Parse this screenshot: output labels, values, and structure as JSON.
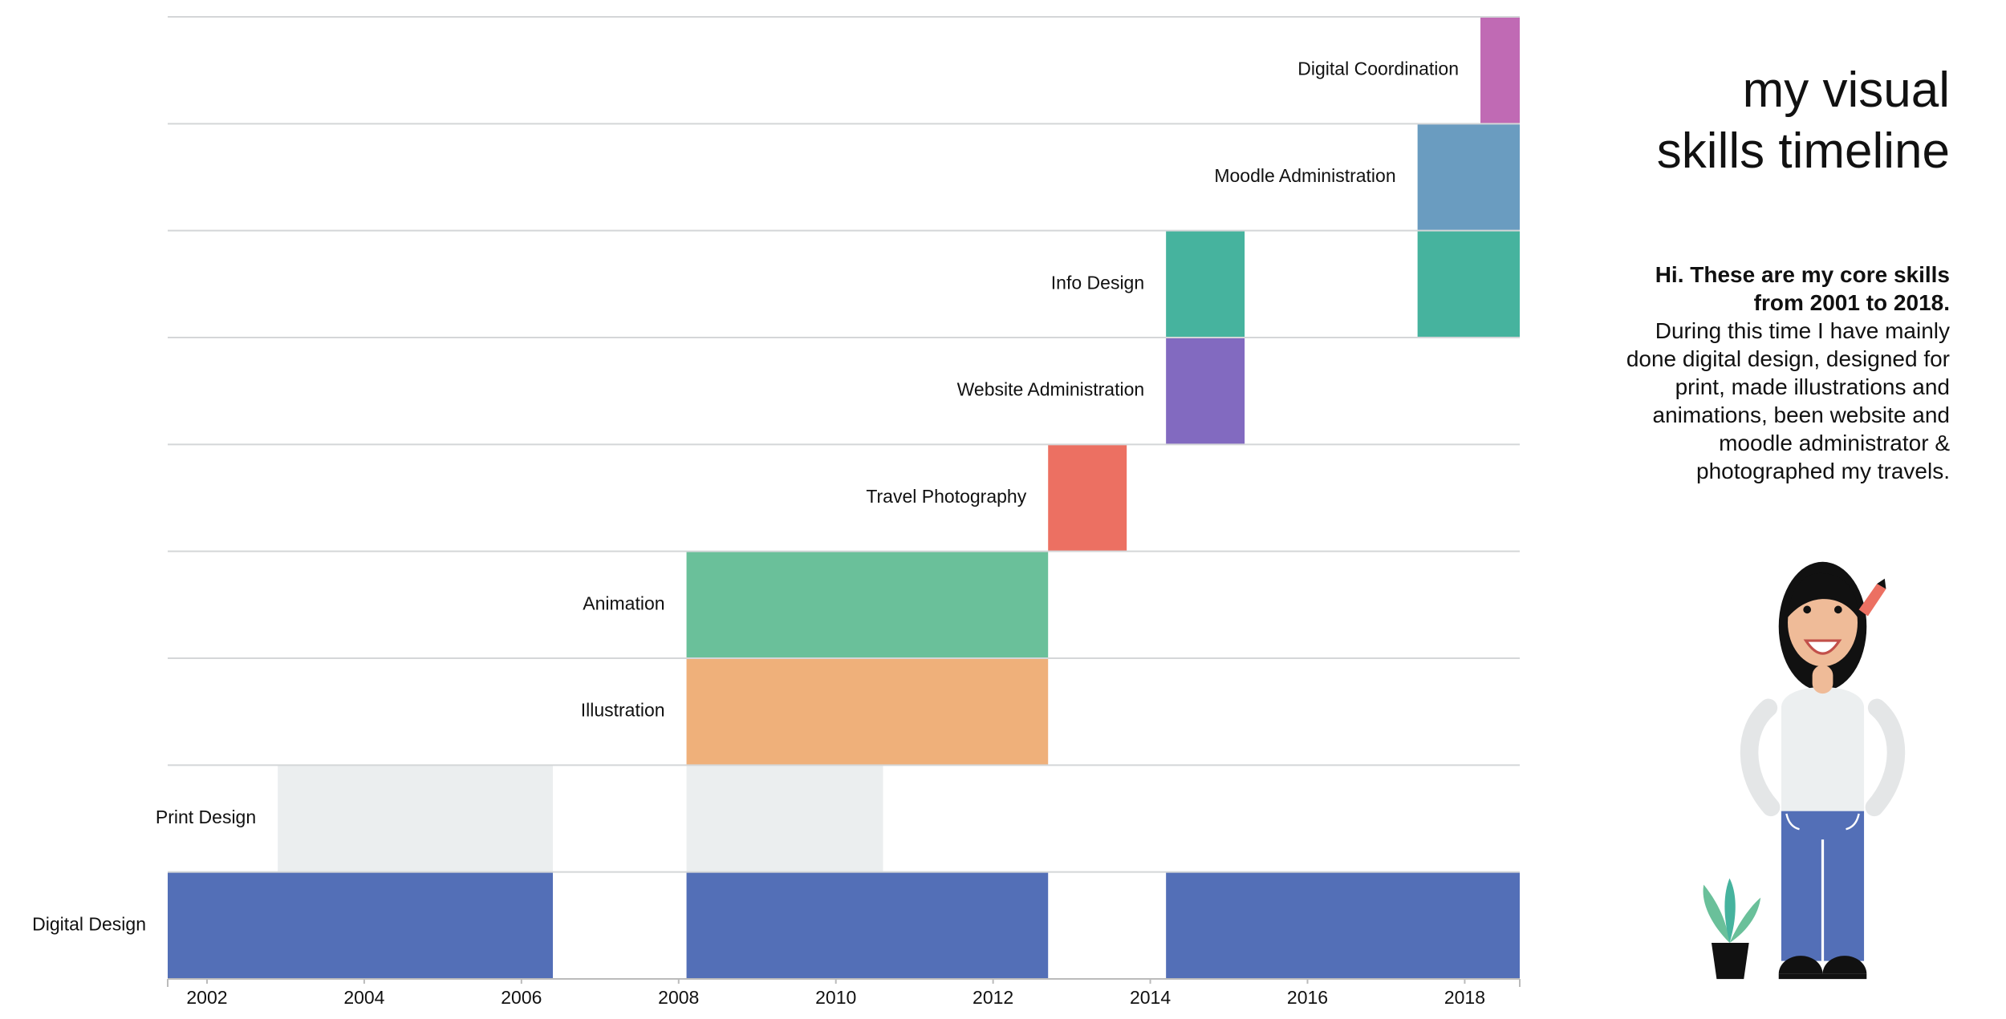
{
  "chart_data": {
    "type": "timeline",
    "title": [
      "my visual",
      "skills timeline"
    ],
    "intro_bold": "Hi. These are my core skills from 2001 to 2018.",
    "intro": "During this time I have mainly done digital design, designed for print, made illustrations and animations, been website and moodle administrator & photographed my travels.",
    "xlim": [
      2001.5,
      2018.7
    ],
    "xticks": [
      2002,
      2004,
      2006,
      2008,
      2010,
      2012,
      2014,
      2016,
      2018
    ],
    "grid": true,
    "series": [
      {
        "name": "Digital Coordination",
        "color": "#c06ab4",
        "intervals": [
          [
            2018.2,
            2018.7
          ]
        ]
      },
      {
        "name": "Moodle Administration",
        "color": "#6a9cc0",
        "intervals": [
          [
            2017.4,
            2018.7
          ]
        ]
      },
      {
        "name": "Info Design",
        "color": "#46b39e",
        "intervals": [
          [
            2014.2,
            2015.2
          ],
          [
            2017.4,
            2018.7
          ]
        ]
      },
      {
        "name": "Website Administration",
        "color": "#826ac0",
        "intervals": [
          [
            2014.2,
            2015.2
          ]
        ]
      },
      {
        "name": "Travel Photography",
        "color": "#ec7062",
        "intervals": [
          [
            2012.7,
            2013.7
          ]
        ]
      },
      {
        "name": "Animation",
        "color": "#6ac09a",
        "intervals": [
          [
            2008.1,
            2012.7
          ]
        ]
      },
      {
        "name": "Illustration",
        "color": "#efb07a",
        "intervals": [
          [
            2008.1,
            2012.7
          ]
        ]
      },
      {
        "name": "Print Design",
        "color": "#ebeeef",
        "intervals": [
          [
            2002.9,
            2006.4
          ],
          [
            2008.1,
            2010.6
          ]
        ]
      },
      {
        "name": "Digital Design",
        "color": "#536fb7",
        "intervals": [
          [
            2001.5,
            2006.4
          ],
          [
            2008.1,
            2012.7
          ],
          [
            2014.2,
            2018.7
          ]
        ]
      }
    ]
  }
}
